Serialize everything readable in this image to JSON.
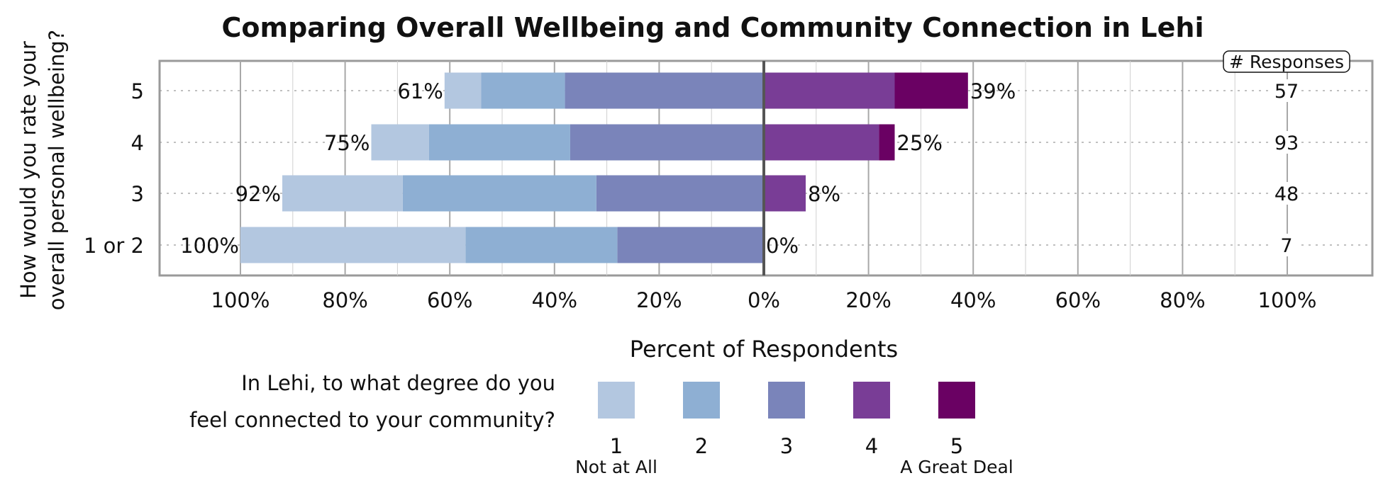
{
  "chart_data": {
    "type": "bar",
    "orientation": "horizontal",
    "stacked": "diverging",
    "title": "Comparing Overall Wellbeing and Community Connection in Lehi",
    "ylabel_lines": [
      "How would you rate your",
      "overall personal wellbeing?"
    ],
    "xlabel": "Percent of Respondents",
    "categories": [
      "5",
      "4",
      "3",
      "1 or 2"
    ],
    "x_ticks": [
      "100%",
      "80%",
      "60%",
      "40%",
      "20%",
      "0%",
      "20%",
      "40%",
      "60%",
      "80%",
      "100%"
    ],
    "xlim": [
      -100,
      100
    ],
    "grid": true,
    "legend": {
      "title_lines": [
        "In Lehi, to what degree do you",
        "feel connected to your community?"
      ],
      "position": "bottom",
      "low_label": "Not at All",
      "high_label": "A Great Deal"
    },
    "series": [
      {
        "name": "1",
        "color": "#b3c7e0",
        "side": "negative",
        "values": [
          7,
          11,
          23,
          43
        ]
      },
      {
        "name": "2",
        "color": "#8eafd3",
        "side": "negative",
        "values": [
          16,
          27,
          37,
          29
        ]
      },
      {
        "name": "3",
        "color": "#7a84ba",
        "side": "negative",
        "values": [
          38,
          37,
          32,
          28
        ]
      },
      {
        "name": "4",
        "color": "#793d96",
        "side": "positive",
        "values": [
          25,
          22,
          8,
          0
        ]
      },
      {
        "name": "5",
        "color": "#6a0163",
        "side": "positive",
        "values": [
          14,
          3,
          0,
          0
        ]
      }
    ],
    "negative_totals": [
      "61%",
      "75%",
      "92%",
      "100%"
    ],
    "positive_totals": [
      "39%",
      "25%",
      "8%",
      "0%"
    ],
    "responses_header": "# Responses",
    "responses": [
      "57",
      "93",
      "48",
      "7"
    ]
  }
}
